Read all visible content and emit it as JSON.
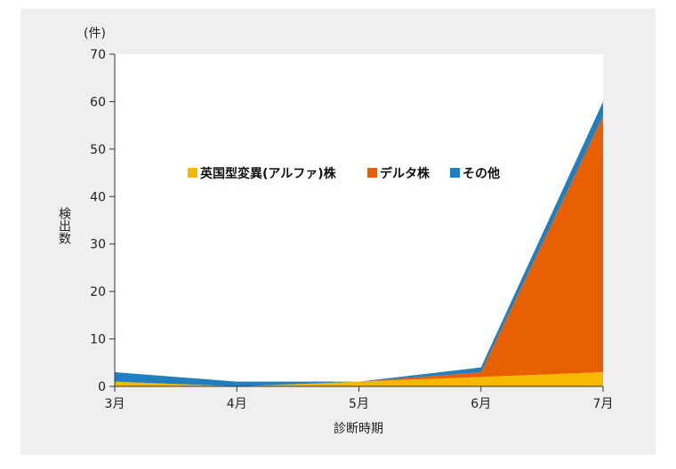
{
  "chart_data": {
    "type": "area",
    "stacked": true,
    "categories": [
      "3月",
      "4月",
      "5月",
      "6月",
      "7月"
    ],
    "series": [
      {
        "name": "英国型変異(アルファ)株",
        "values": [
          1,
          0,
          1,
          2,
          3
        ],
        "color": "#f6b800"
      },
      {
        "name": "デルタ株",
        "values": [
          0,
          0,
          0,
          1,
          54
        ],
        "color": "#e85f00"
      },
      {
        "name": "その他",
        "values": [
          2,
          1,
          0,
          1,
          3
        ],
        "color": "#1f7fc0"
      }
    ],
    "ylim": [
      0,
      70
    ],
    "yticks": [
      0,
      10,
      20,
      30,
      40,
      50,
      60,
      70
    ],
    "unit_label": "(件)",
    "ylabel": "検出数",
    "xlabel": "診断時期",
    "legend_position": "top-center inside plot",
    "grid": false
  }
}
